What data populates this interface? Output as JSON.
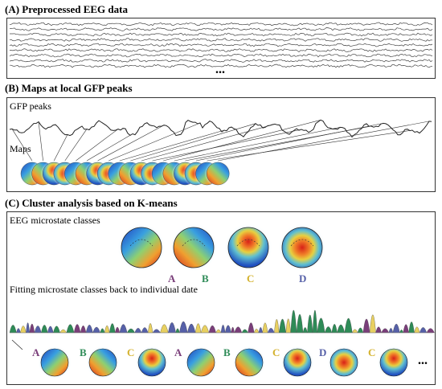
{
  "sections": {
    "a_title": "(A) Preprocessed EEG data",
    "b_title": "(B) Maps at local GFP peaks",
    "c_title": "(C) Cluster analysis based on K-means"
  },
  "panel_a": {
    "ellipsis": "..."
  },
  "panel_b": {
    "gfp_label": "GFP peaks",
    "maps_label": "Maps"
  },
  "panel_c": {
    "classes_label": "EEG microstate classes",
    "fitting_label": "Fitting microstate classes back to individual date",
    "classes": [
      {
        "letter": "A",
        "color": "#7a3e7a"
      },
      {
        "letter": "B",
        "color": "#2e8b57"
      },
      {
        "letter": "C",
        "color": "#d4b22e"
      },
      {
        "letter": "D",
        "color": "#5660a8"
      }
    ],
    "sequence": [
      "A",
      "B",
      "C",
      "A",
      "B",
      "C",
      "D",
      "C"
    ],
    "ellipsis": "..."
  }
}
